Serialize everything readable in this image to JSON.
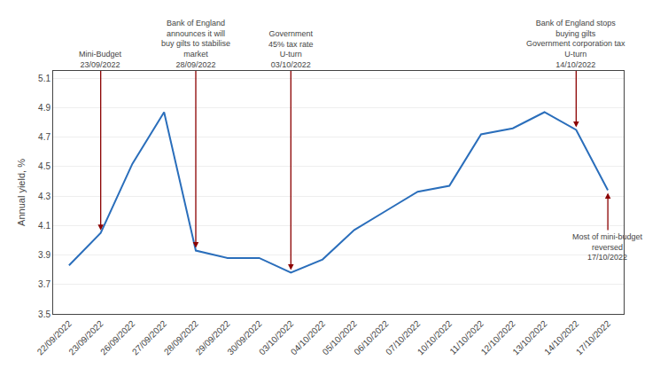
{
  "chart_data": {
    "type": "line",
    "categories": [
      "22/09/2022",
      "23/09/2022",
      "26/09/2022",
      "27/09/2022",
      "28/09/2022",
      "29/09/2022",
      "30/09/2022",
      "03/10/2022",
      "04/10/2022",
      "05/10/2022",
      "06/10/2022",
      "07/10/2022",
      "10/10/2022",
      "11/10/2022",
      "12/10/2022",
      "13/10/2022",
      "14/10/2022",
      "17/10/2022"
    ],
    "values": [
      3.83,
      4.05,
      4.52,
      4.87,
      3.93,
      3.88,
      3.88,
      3.78,
      3.87,
      4.07,
      4.2,
      4.33,
      4.37,
      4.72,
      4.76,
      4.87,
      4.75,
      4.34
    ],
    "color": "#2a6ebb",
    "ylabel": "Annual yield, %",
    "ylim": [
      3.5,
      5.15
    ],
    "yticks": [
      3.5,
      3.7,
      3.9,
      4.1,
      4.3,
      4.5,
      4.7,
      4.9,
      5.1
    ],
    "grid": true,
    "annotations": [
      {
        "text": "Mini-Budget\n23/09/2022",
        "x": "23/09/2022",
        "color": "#8b0000"
      },
      {
        "text": "Bank of England\nannounces it will\nbuy gilts to stabilise\nmarket\n28/09/2022",
        "x": "28/09/2022",
        "color": "#8b0000"
      },
      {
        "text": "Government\n45% tax rate\nU-turn\n03/10/2022",
        "x": "03/10/2022",
        "color": "#8b0000"
      },
      {
        "text": "Bank of England stops\nbuying gilts\nGovernment corporation tax\nU-turn\n14/10/2022",
        "x": "14/10/2022",
        "color": "#8b0000"
      },
      {
        "text": "Most of mini-budget\nreversed\n17/10/2022",
        "x": "17/10/2022",
        "color": "#8b0000"
      }
    ]
  }
}
